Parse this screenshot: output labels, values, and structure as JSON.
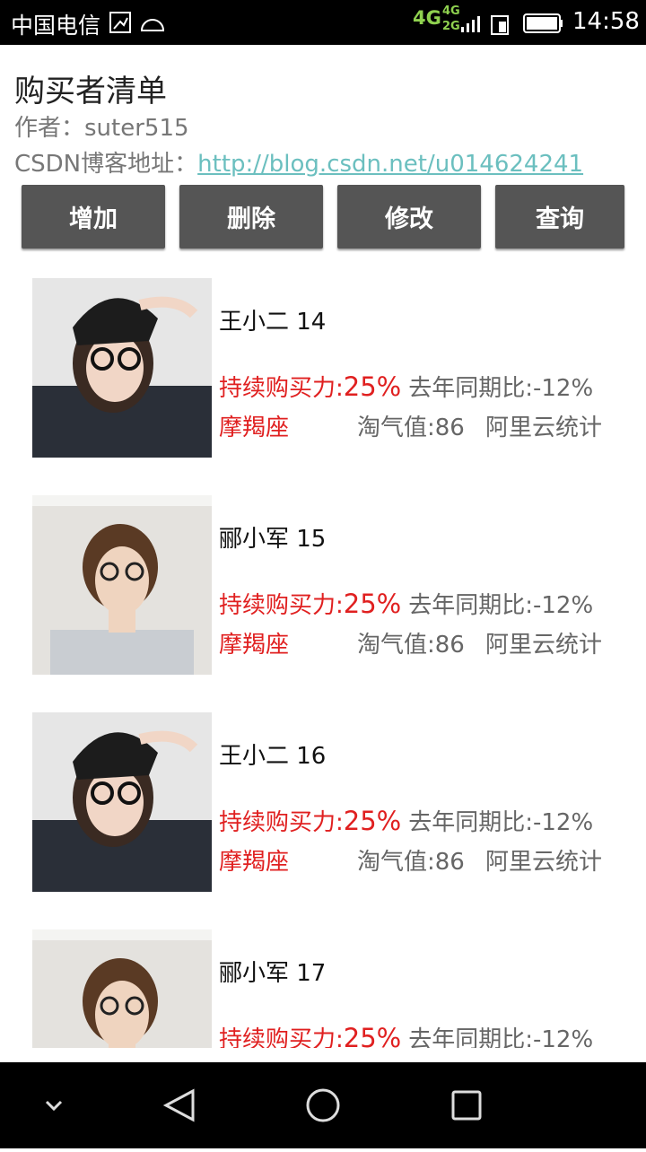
{
  "status_bar": {
    "carrier": "中国电信",
    "network_main": "4G",
    "network_top": "4G",
    "network_bottom": "2G",
    "time": "14:58"
  },
  "header": {
    "title": "购买者清单",
    "author": "作者：suter515",
    "blog_label": "CSDN博客地址：",
    "blog_url": "http://blog.csdn.net/u014624241"
  },
  "buttons": [
    "增加",
    "删除",
    "修改",
    "查询"
  ],
  "items": [
    {
      "name": "王小二 14",
      "power_label": "持续购买力:",
      "power_value": "25%",
      "yoy": "去年同期比:-12%",
      "sign": "摩羯座",
      "taoqi": "淘气值:86",
      "source": "阿里云统计"
    },
    {
      "name": "郦小军 15",
      "power_label": "持续购买力:",
      "power_value": "25%",
      "yoy": "去年同期比:-12%",
      "sign": "摩羯座",
      "taoqi": "淘气值:86",
      "source": "阿里云统计"
    },
    {
      "name": "王小二 16",
      "power_label": "持续购买力:",
      "power_value": "25%",
      "yoy": "去年同期比:-12%",
      "sign": "摩羯座",
      "taoqi": "淘气值:86",
      "source": "阿里云统计"
    },
    {
      "name": "郦小军 17",
      "power_label": "持续购买力:",
      "power_value": "25%",
      "yoy": "去年同期比:-12%"
    }
  ]
}
